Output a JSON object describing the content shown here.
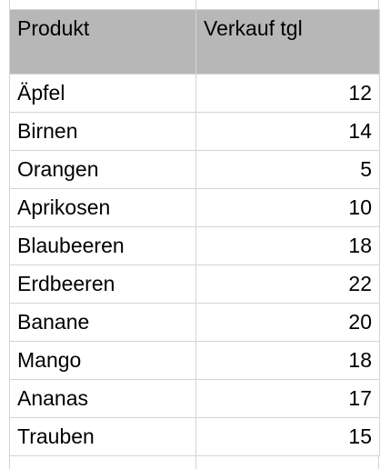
{
  "header": {
    "product": "Produkt",
    "sales": "Verkauf tgl"
  },
  "rows": [
    {
      "product": "Äpfel",
      "sales": "12"
    },
    {
      "product": "Birnen",
      "sales": "14"
    },
    {
      "product": "Orangen",
      "sales": "5"
    },
    {
      "product": "Aprikosen",
      "sales": "10"
    },
    {
      "product": "Blaubeeren",
      "sales": "18"
    },
    {
      "product": "Erdbeeren",
      "sales": "22"
    },
    {
      "product": "Banane",
      "sales": "20"
    },
    {
      "product": "Mango",
      "sales": "18"
    },
    {
      "product": "Ananas",
      "sales": "17"
    },
    {
      "product": "Trauben",
      "sales": "15"
    }
  ]
}
